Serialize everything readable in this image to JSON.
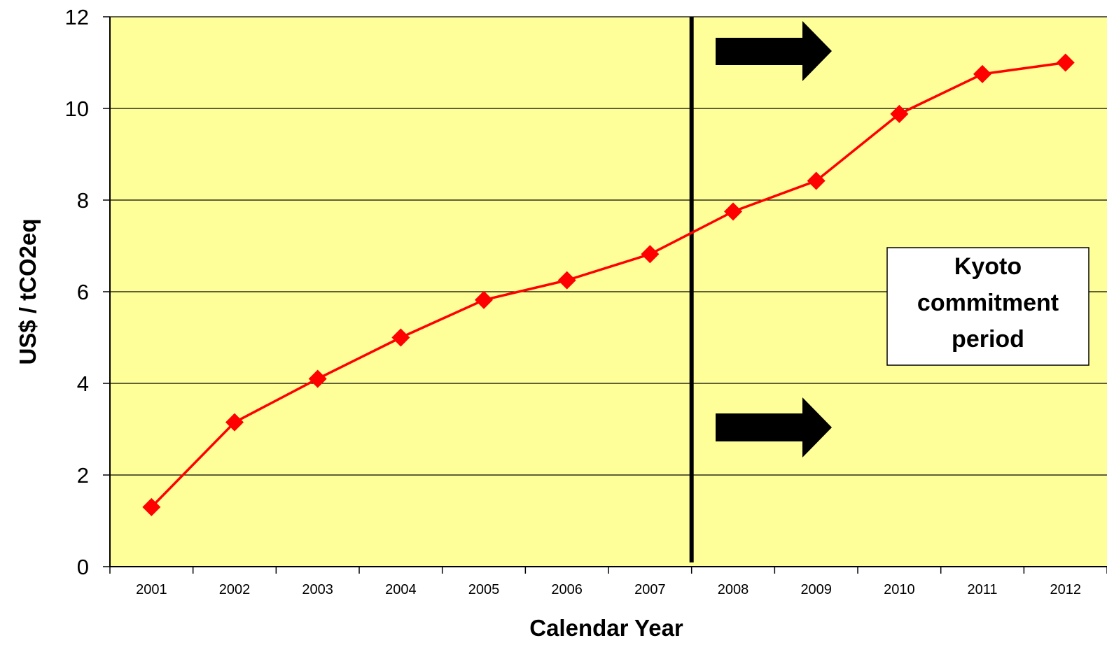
{
  "chart_data": {
    "type": "line",
    "title": "",
    "xlabel": "Calendar Year",
    "ylabel": "US$ / tCO2eq",
    "categories": [
      "2001",
      "2002",
      "2003",
      "2004",
      "2005",
      "2006",
      "2007",
      "2008",
      "2009",
      "2010",
      "2011",
      "2012"
    ],
    "series": [
      {
        "values": [
          1.3,
          3.15,
          4.1,
          5.0,
          5.82,
          6.25,
          6.82,
          7.75,
          8.42,
          9.88,
          10.75,
          11.0
        ],
        "color": "#ff0000",
        "marker": "diamond"
      }
    ],
    "ylim": [
      0,
      12
    ],
    "yticks": [
      "0",
      "2",
      "4",
      "6",
      "8",
      "10",
      "12"
    ],
    "grid": "horizontal",
    "plot_background": "#ffff99",
    "annotations": {
      "divider_after_category": "2007",
      "label_lines": [
        "Kyoto",
        "commitment",
        "period"
      ],
      "arrows": "two right-pointing black arrows"
    }
  }
}
